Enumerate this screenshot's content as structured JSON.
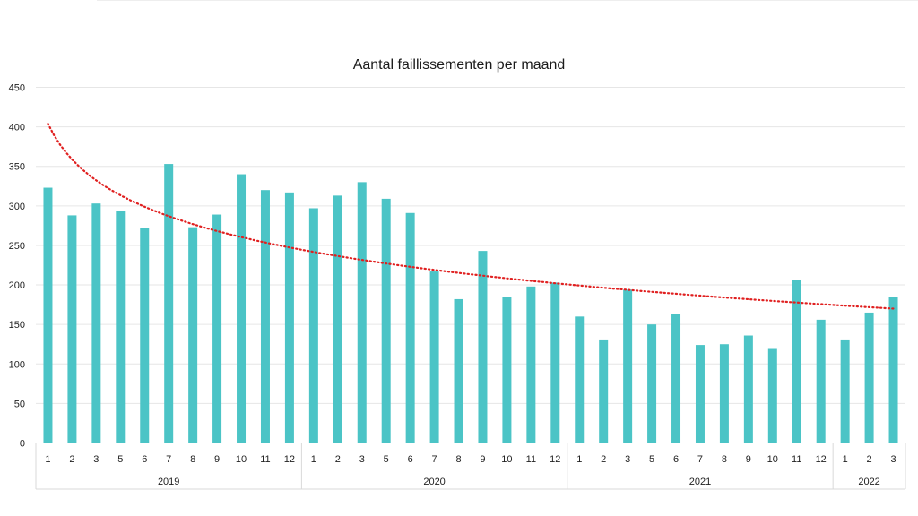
{
  "chart_data": {
    "type": "bar",
    "title": "Aantal faillissementen per maand",
    "xlabel": "",
    "ylabel": "",
    "ylim": [
      0,
      450
    ],
    "yticks": [
      "0",
      "50",
      "100",
      "150",
      "200",
      "250",
      "300",
      "350",
      "400",
      "450"
    ],
    "grid": true,
    "bar_color": "#4BC4C6",
    "trend_color": "#E02020",
    "groups": [
      {
        "label": "2019",
        "months": [
          "1",
          "2",
          "3",
          "5",
          "6",
          "7",
          "8",
          "9",
          "10",
          "11",
          "12"
        ]
      },
      {
        "label": "2020",
        "months": [
          "1",
          "2",
          "3",
          "5",
          "6",
          "7",
          "8",
          "9",
          "10",
          "11",
          "12"
        ]
      },
      {
        "label": "2021",
        "months": [
          "1",
          "2",
          "3",
          "5",
          "6",
          "7",
          "8",
          "9",
          "10",
          "11",
          "12"
        ]
      },
      {
        "label": "2022",
        "months": [
          "1",
          "2",
          "3"
        ]
      }
    ],
    "series": [
      {
        "values": [
          323,
          288,
          303,
          293,
          272,
          353,
          273,
          289,
          340,
          320,
          317,
          297,
          313,
          330,
          309,
          291,
          217,
          182,
          243,
          185,
          198,
          203,
          160,
          131,
          194,
          150,
          163,
          124,
          125,
          136,
          119,
          206,
          156,
          131,
          165,
          185
        ]
      }
    ],
    "trendline": {
      "type": "logarithmic",
      "start": 404,
      "end": 170
    }
  }
}
